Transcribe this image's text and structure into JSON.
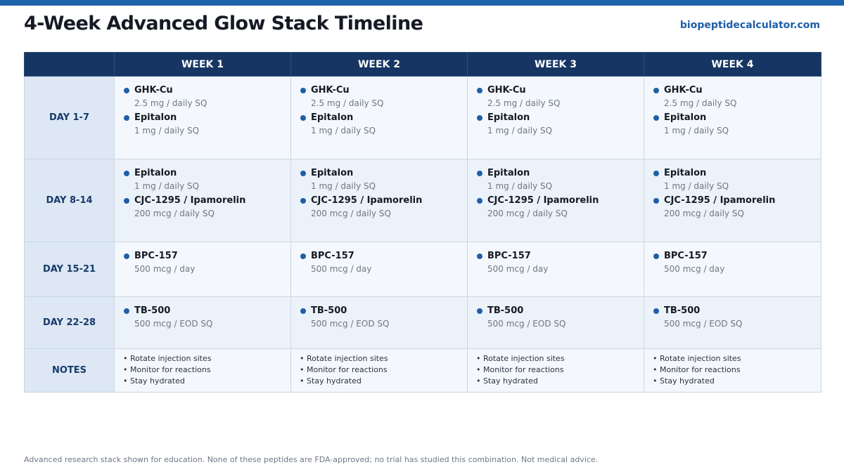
{
  "header": {
    "title": "4-Week Advanced Glow Stack Timeline",
    "site": "biopeptidecalculator.com"
  },
  "table": {
    "corner": "",
    "weeks": [
      "WEEK 1",
      "WEEK 2",
      "WEEK 3",
      "WEEK 4"
    ],
    "rows": [
      {
        "label": "DAY 1-7",
        "entries": [
          {
            "name": "GHK-Cu",
            "dose": "2.5 mg / daily SQ"
          },
          {
            "name": "Epitalon",
            "dose": "1 mg / daily SQ"
          }
        ]
      },
      {
        "label": "DAY 8-14",
        "entries": [
          {
            "name": "Epitalon",
            "dose": "1 mg / daily SQ"
          },
          {
            "name": "CJC-1295 / Ipamorelin",
            "dose": "200 mcg / daily SQ"
          }
        ]
      },
      {
        "label": "DAY 15-21",
        "entries": [
          {
            "name": "BPC-157",
            "dose": "500 mcg / day"
          }
        ]
      },
      {
        "label": "DAY 22-28",
        "entries": [
          {
            "name": "TB-500",
            "dose": "500 mcg / EOD SQ"
          }
        ]
      }
    ],
    "notes_label": "NOTES",
    "notes": [
      "• Rotate injection sites",
      "• Monitor for reactions",
      "• Stay hydrated"
    ]
  },
  "footer": {
    "disclaimer": "Advanced research stack shown for education. None of these peptides are FDA-approved; no trial has studied this combination. Not medical advice."
  },
  "colors": {
    "accent": "#1f63ad",
    "header_bg": "#163563",
    "row_label_bg": "#dde8f4"
  }
}
